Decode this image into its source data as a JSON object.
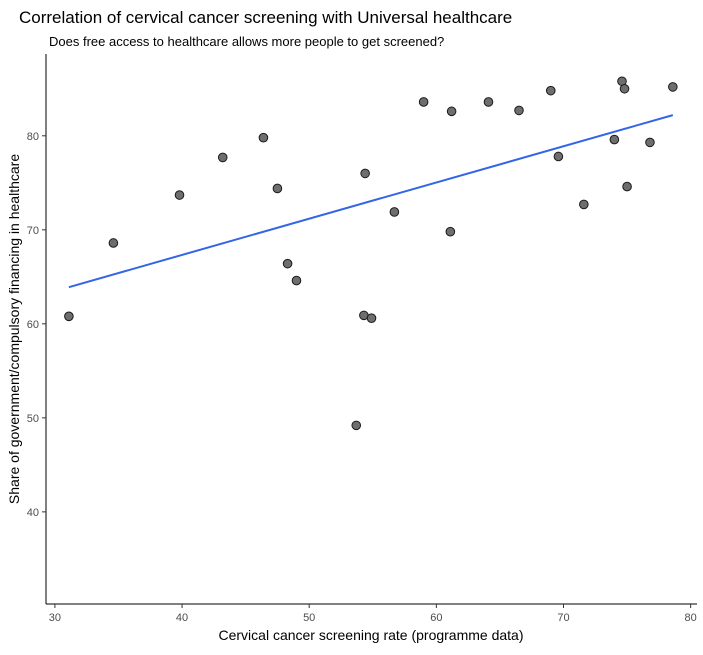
{
  "chart_data": {
    "type": "scatter",
    "title": "Correlation of cervical cancer screening with Universal healthcare",
    "subtitle": "Does free access to healthcare allows more people to get screened?",
    "xlabel": "Cervical cancer screening rate (programme data)",
    "ylabel": "Share of government/compulsory financing in healthcare",
    "xlim": [
      29.3,
      80.5
    ],
    "ylim": [
      30.2,
      88.7
    ],
    "xticks": [
      "30",
      "40",
      "50",
      "60",
      "70",
      "80"
    ],
    "yticks": [
      "40",
      "50",
      "60",
      "70",
      "80"
    ],
    "grid": false,
    "points": [
      {
        "x": 31.1,
        "y": 60.8
      },
      {
        "x": 34.6,
        "y": 68.6
      },
      {
        "x": 39.8,
        "y": 73.7
      },
      {
        "x": 43.2,
        "y": 77.7
      },
      {
        "x": 46.4,
        "y": 79.8
      },
      {
        "x": 47.5,
        "y": 74.4
      },
      {
        "x": 48.3,
        "y": 66.4
      },
      {
        "x": 49.0,
        "y": 64.6
      },
      {
        "x": 53.7,
        "y": 49.2
      },
      {
        "x": 54.3,
        "y": 60.9
      },
      {
        "x": 54.4,
        "y": 76.0
      },
      {
        "x": 54.9,
        "y": 60.6
      },
      {
        "x": 56.7,
        "y": 71.9
      },
      {
        "x": 59.0,
        "y": 83.6
      },
      {
        "x": 61.1,
        "y": 69.8
      },
      {
        "x": 61.2,
        "y": 82.6
      },
      {
        "x": 64.1,
        "y": 83.6
      },
      {
        "x": 66.5,
        "y": 82.7
      },
      {
        "x": 69.0,
        "y": 84.8
      },
      {
        "x": 69.6,
        "y": 77.8
      },
      {
        "x": 71.6,
        "y": 72.7
      },
      {
        "x": 74.0,
        "y": 79.6
      },
      {
        "x": 74.6,
        "y": 85.8
      },
      {
        "x": 74.8,
        "y": 85.0
      },
      {
        "x": 75.0,
        "y": 74.6
      },
      {
        "x": 76.8,
        "y": 79.3
      },
      {
        "x": 78.6,
        "y": 85.2
      }
    ],
    "trend_line": {
      "x": [
        31.1,
        78.6
      ],
      "y": [
        63.9,
        82.2
      ],
      "color": "#3366e6"
    },
    "point_color": "#6e6e6e"
  }
}
